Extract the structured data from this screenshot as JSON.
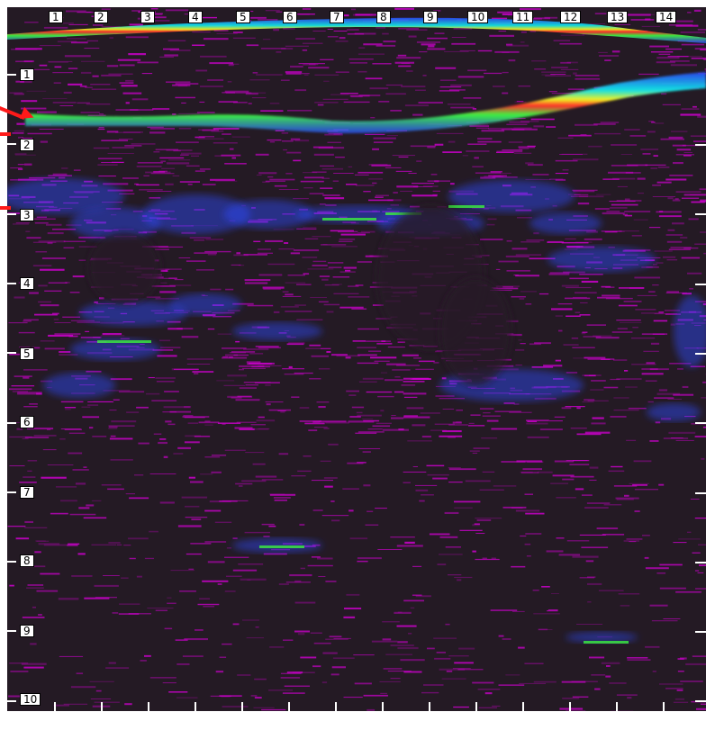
{
  "image": {
    "description_colors": {
      "background": "#241a24",
      "speckle": "#d000d0",
      "echo_blue": "#2a4cff",
      "echo_cyan": "#12e0e0",
      "echo_green": "#3cf040",
      "echo_yellow": "#f0f020",
      "echo_red": "#ff2a2a",
      "arrow": "#ff1a1a",
      "label_bg": "#ffffff"
    }
  },
  "axes": {
    "top_labels": [
      "1",
      "2",
      "3",
      "4",
      "5",
      "6",
      "7",
      "8",
      "9",
      "10",
      "11",
      "12",
      "13",
      "14"
    ],
    "left_labels": [
      "1",
      "2",
      "3",
      "4",
      "5",
      "6",
      "7",
      "8",
      "9",
      "10"
    ]
  }
}
